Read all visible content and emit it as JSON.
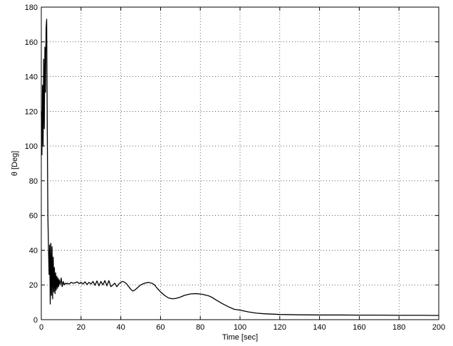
{
  "chart_data": {
    "type": "line",
    "title": "",
    "xlabel": "Time [sec]",
    "ylabel": "θ [Deg]",
    "xlim": [
      0,
      200
    ],
    "ylim": [
      0,
      180
    ],
    "xticks": [
      0,
      20,
      40,
      60,
      80,
      100,
      120,
      140,
      160,
      180,
      200
    ],
    "yticks": [
      0,
      20,
      40,
      60,
      80,
      100,
      120,
      140,
      160,
      180
    ],
    "grid": true,
    "legend": "none",
    "line_color": "#000000",
    "series": [
      {
        "x": [
          0,
          0.3,
          0.6,
          0.9,
          1.2,
          1.5,
          1.8,
          2.1,
          2.4,
          2.7,
          3.0,
          3.3,
          3.6,
          3.9,
          4.2,
          4.5,
          4.8,
          5.1,
          5.4,
          5.7,
          6.0,
          6.3,
          6.6,
          6.9,
          7.2,
          7.5,
          7.8,
          8.1,
          8.4,
          8.7,
          9.0,
          9.5,
          10,
          10.5,
          11,
          11.5,
          12,
          12.5,
          13,
          14,
          15,
          16,
          17,
          18,
          19,
          20,
          21,
          22,
          23,
          24,
          25,
          26,
          27,
          28,
          29,
          30,
          31,
          32,
          33,
          34,
          35,
          36,
          37,
          38,
          39,
          40,
          41,
          42,
          43,
          44,
          45,
          46,
          47,
          48,
          50,
          52,
          54,
          56,
          57,
          58,
          60,
          62,
          64,
          66,
          68,
          70,
          72,
          75,
          78,
          81,
          84,
          86,
          88,
          91,
          94,
          97,
          100,
          104,
          108,
          112,
          116,
          120,
          125,
          130,
          140,
          150,
          160,
          170,
          180,
          190,
          200
        ],
        "y": [
          120,
          95,
          135,
          100,
          150,
          110,
          157,
          131,
          168,
          173,
          110,
          60,
          42,
          26,
          43,
          9,
          44,
          14,
          42,
          12,
          36,
          16,
          30,
          15,
          27,
          17,
          25,
          18,
          24,
          19,
          23,
          20,
          24,
          19,
          22,
          20,
          21,
          20.5,
          21,
          20.5,
          21.5,
          21,
          21.2,
          21.8,
          20.8,
          21.5,
          20.5,
          21.8,
          20.2,
          21.5,
          20.5,
          22,
          19.8,
          22.3,
          19.5,
          22,
          20,
          22.5,
          19.5,
          22.5,
          19,
          20,
          21,
          19,
          20.5,
          21.5,
          22,
          21.5,
          20.5,
          19,
          17.5,
          16.5,
          17,
          18,
          20,
          21,
          21.5,
          20.8,
          20,
          18.5,
          16,
          14,
          12.5,
          12,
          12.3,
          13,
          14,
          14.8,
          15,
          14.6,
          13.8,
          12.8,
          11.3,
          9.3,
          7.5,
          6,
          5.5,
          4.5,
          3.8,
          3.4,
          3.2,
          3.0,
          2.9,
          2.8,
          2.7,
          2.7,
          2.6,
          2.6,
          2.5,
          2.5,
          2.4
        ]
      }
    ]
  }
}
